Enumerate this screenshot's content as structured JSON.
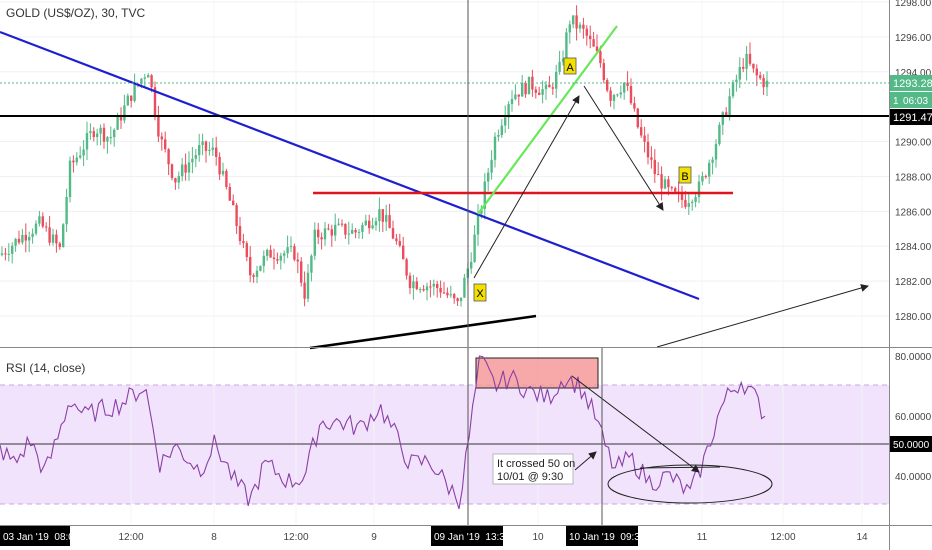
{
  "chart_data": [
    {
      "type": "candlestick",
      "title": "GOLD (US$/OZ), 30, TVC",
      "y_ticks": [
        "1298.00",
        "1296.00",
        "1294.00",
        "1290.00",
        "1288.00",
        "1286.00",
        "1284.00",
        "1282.00",
        "1280.00"
      ],
      "ylim": [
        1278.6,
        1298.3
      ],
      "price_badges": {
        "last": "1293.28",
        "countdown": "06:03",
        "partial": "1",
        "hline": "1291.47"
      },
      "colors": {
        "up": "#53b987",
        "down": "#eb4d5c",
        "trendline": "#1f1fd1",
        "resistance": "#e0141e",
        "channel": "#66e85a"
      },
      "markers": [
        "A",
        "X",
        "B"
      ]
    },
    {
      "type": "line",
      "title": "RSI (14, close)",
      "y_ticks": [
        "80.0000",
        "60.0000",
        "40.0000"
      ],
      "ylim": [
        25,
        82
      ],
      "bands": [
        30,
        70
      ],
      "level_badge": "50.0000",
      "annotation": "It crossed 50 on 10/01 @ 9:30",
      "colors": {
        "line": "#8a3fa6",
        "band": "#f0e0fb",
        "highlight": "#f59a99"
      }
    }
  ],
  "x_axis": {
    "ticks": [
      "12:00",
      "8",
      "12:00",
      "9",
      "10",
      "11",
      "12:00",
      "14"
    ],
    "date_badges": [
      "03 Jan '19  08:00",
      "09 Jan '19  13:30",
      "10 Jan '19  09:30"
    ]
  }
}
